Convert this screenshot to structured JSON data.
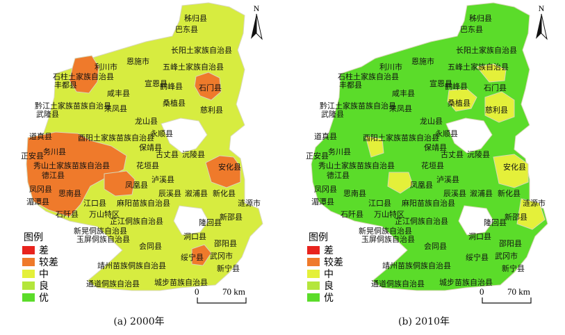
{
  "legend": {
    "title": "图例",
    "items": [
      {
        "label": "差",
        "color": "#e8231d"
      },
      {
        "label": "较差",
        "color": "#ef7a2b"
      },
      {
        "label": "中",
        "color": "#e4f03a"
      },
      {
        "label": "良",
        "color": "#b4e63c"
      },
      {
        "label": "优",
        "color": "#5bdc2a"
      }
    ]
  },
  "north_label": "N",
  "scale": {
    "zero": "0",
    "distance": "70 km"
  },
  "panels": [
    {
      "caption": "(a)  2000年",
      "base_color": "#d7ec40",
      "highlight_color": "#ef7a2b"
    },
    {
      "caption": "(b)  2010年",
      "base_color": "#5bdc2a",
      "highlight_color": "#e4f03a"
    }
  ],
  "counties": [
    "秭归县",
    "巴东县",
    "长阳土家族自治县",
    "利川市",
    "恩施市",
    "五峰土家族自治县",
    "石柱土家族自治县",
    "丰都县",
    "宣恩县",
    "鹤峰县",
    "石门县",
    "咸丰县",
    "黔江土家族苗族自治县",
    "来凤县",
    "桑植县",
    "慈利县",
    "武隆县",
    "龙山县",
    "永顺县",
    "道真县",
    "酉阳土家族苗族自治县",
    "保靖县",
    "务川县",
    "古丈县",
    "沅陵县",
    "正安县",
    "秀山土家族苗族自治县",
    "花垣县",
    "安化县",
    "德江县",
    "泸溪县",
    "凤冈县",
    "思南县",
    "凤凰县",
    "辰溪县",
    "溆浦县",
    "新化县",
    "湄潭县",
    "江口县",
    "麻阳苗族自治县",
    "涟源市",
    "石阡县",
    "万山特区",
    "芷江侗族自治县",
    "隆回县",
    "新晃侗族自治县",
    "新邵县",
    "玉屏侗族自治县",
    "洞口县",
    "会同县",
    "邵阳县",
    "绥宁县",
    "武冈市",
    "靖州苗族侗族自治县",
    "新宁县",
    "通道侗族自治县",
    "城步苗族自治县"
  ]
}
